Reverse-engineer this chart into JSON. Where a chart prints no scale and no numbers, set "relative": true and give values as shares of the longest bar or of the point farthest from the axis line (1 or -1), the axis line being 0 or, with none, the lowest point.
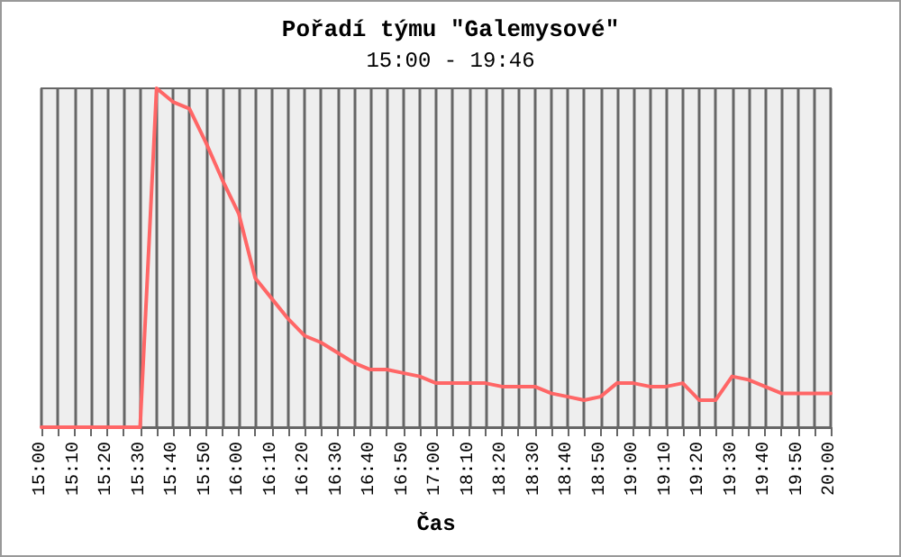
{
  "chart_data": {
    "type": "line",
    "title": "Pořadí týmu \"Galemysové\"",
    "subtitle": "15:00 - 19:46",
    "xlabel": "Čas",
    "categories": [
      "15:00",
      null,
      "15:10",
      null,
      "15:20",
      null,
      "15:30",
      null,
      "15:40",
      null,
      "15:50",
      null,
      "16:00",
      null,
      "16:10",
      null,
      "16:20",
      null,
      "16:30",
      null,
      "16:40",
      null,
      "16:50",
      null,
      "17:00",
      null,
      "18:10",
      null,
      "18:20",
      null,
      "18:30",
      null,
      "18:40",
      null,
      "18:50",
      null,
      "19:00",
      null,
      "19:10",
      null,
      "19:20",
      null,
      "19:30",
      null,
      "19:40",
      null,
      "19:50",
      null,
      "20:00"
    ],
    "series": [
      {
        "color": "#ff6666",
        "values": [
          0,
          0,
          0,
          0,
          0,
          0,
          0,
          1,
          0.96,
          0.94,
          0.84,
          0.73,
          0.63,
          0.44,
          0.38,
          0.32,
          0.27,
          0.25,
          0.22,
          0.19,
          0.17,
          0.17,
          0.16,
          0.15,
          0.13,
          0.13,
          0.13,
          0.13,
          0.12,
          0.12,
          0.12,
          0.1,
          0.09,
          0.08,
          0.09,
          0.13,
          0.13,
          0.12,
          0.12,
          0.13,
          0.08,
          0.08,
          0.15,
          0.14,
          0.12,
          0.1,
          0.1,
          0.1,
          0.1
        ]
      }
    ],
    "relative": true,
    "grid": "x",
    "marker": "none",
    "line_style": "solid"
  }
}
